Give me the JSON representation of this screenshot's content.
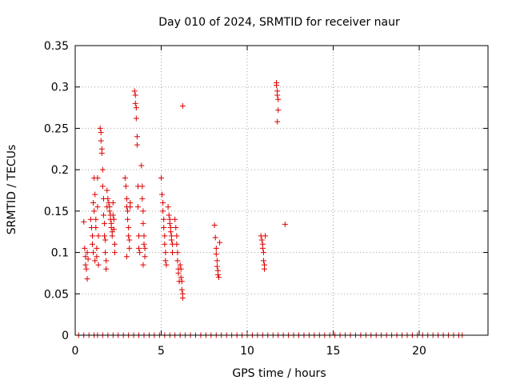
{
  "chart_data": {
    "type": "scatter",
    "title": "Day 010 of 2024, SRMTID for receiver naur",
    "xlabel": "GPS time / hours",
    "ylabel": "SRMTID / TECUs",
    "xlim": [
      0,
      24
    ],
    "ylim": [
      0,
      0.35
    ],
    "x_ticks": [
      0,
      5,
      10,
      15,
      20
    ],
    "x_tick_labels": [
      "0",
      "5",
      "10",
      "15",
      "20"
    ],
    "y_ticks": [
      0,
      0.05,
      0.1,
      0.15,
      0.2,
      0.25,
      0.3,
      0.35
    ],
    "y_tick_labels": [
      "0",
      "0.05",
      "0.1",
      "0.15",
      "0.2",
      "0.25",
      "0.3",
      "0.35"
    ],
    "grid": true,
    "marker": "+",
    "color": "#dd0000",
    "series": [
      {
        "name": "SRMTID",
        "points": [
          [
            0.5,
            0.137
          ],
          [
            0.55,
            0.105
          ],
          [
            0.6,
            0.095
          ],
          [
            0.6,
            0.085
          ],
          [
            0.65,
            0.08
          ],
          [
            0.7,
            0.068
          ],
          [
            0.7,
            0.1
          ],
          [
            0.75,
            0.092
          ],
          [
            0.9,
            0.14
          ],
          [
            0.95,
            0.13
          ],
          [
            1.0,
            0.12
          ],
          [
            1.0,
            0.11
          ],
          [
            1.05,
            0.1
          ],
          [
            1.05,
            0.16
          ],
          [
            1.1,
            0.15
          ],
          [
            1.1,
            0.19
          ],
          [
            1.15,
            0.17
          ],
          [
            1.15,
            0.09
          ],
          [
            1.2,
            0.14
          ],
          [
            1.2,
            0.13
          ],
          [
            1.25,
            0.105
          ],
          [
            1.25,
            0.095
          ],
          [
            1.3,
            0.19
          ],
          [
            1.3,
            0.155
          ],
          [
            1.35,
            0.12
          ],
          [
            1.35,
            0.085
          ],
          [
            1.45,
            0.25
          ],
          [
            1.5,
            0.245
          ],
          [
            1.5,
            0.235
          ],
          [
            1.55,
            0.225
          ],
          [
            1.55,
            0.22
          ],
          [
            1.6,
            0.2
          ],
          [
            1.6,
            0.18
          ],
          [
            1.65,
            0.165
          ],
          [
            1.65,
            0.145
          ],
          [
            1.7,
            0.135
          ],
          [
            1.7,
            0.12
          ],
          [
            1.75,
            0.115
          ],
          [
            1.75,
            0.1
          ],
          [
            1.8,
            0.09
          ],
          [
            1.8,
            0.08
          ],
          [
            1.85,
            0.175
          ],
          [
            1.85,
            0.155
          ],
          [
            1.9,
            0.165
          ],
          [
            1.95,
            0.16
          ],
          [
            2.0,
            0.155
          ],
          [
            2.0,
            0.15
          ],
          [
            2.05,
            0.145
          ],
          [
            2.05,
            0.14
          ],
          [
            2.1,
            0.135
          ],
          [
            2.1,
            0.13
          ],
          [
            2.15,
            0.125
          ],
          [
            2.15,
            0.12
          ],
          [
            2.2,
            0.16
          ],
          [
            2.2,
            0.145
          ],
          [
            2.25,
            0.14
          ],
          [
            2.25,
            0.128
          ],
          [
            2.3,
            0.1
          ],
          [
            2.3,
            0.11
          ],
          [
            2.9,
            0.19
          ],
          [
            2.95,
            0.18
          ],
          [
            3.0,
            0.165
          ],
          [
            3.0,
            0.155
          ],
          [
            3.05,
            0.15
          ],
          [
            3.05,
            0.14
          ],
          [
            3.1,
            0.13
          ],
          [
            3.1,
            0.12
          ],
          [
            3.15,
            0.115
          ],
          [
            3.15,
            0.105
          ],
          [
            3.0,
            0.095
          ],
          [
            3.2,
            0.16
          ],
          [
            3.2,
            0.155
          ],
          [
            3.45,
            0.295
          ],
          [
            3.5,
            0.29
          ],
          [
            3.5,
            0.28
          ],
          [
            3.55,
            0.275
          ],
          [
            3.55,
            0.262
          ],
          [
            3.6,
            0.24
          ],
          [
            3.6,
            0.23
          ],
          [
            3.65,
            0.18
          ],
          [
            3.65,
            0.155
          ],
          [
            3.7,
            0.12
          ],
          [
            3.7,
            0.105
          ],
          [
            3.75,
            0.1
          ],
          [
            3.85,
            0.205
          ],
          [
            3.9,
            0.18
          ],
          [
            3.9,
            0.165
          ],
          [
            3.95,
            0.15
          ],
          [
            3.95,
            0.135
          ],
          [
            4.0,
            0.12
          ],
          [
            4.0,
            0.11
          ],
          [
            4.05,
            0.105
          ],
          [
            4.05,
            0.095
          ],
          [
            3.95,
            0.085
          ],
          [
            5.0,
            0.19
          ],
          [
            5.05,
            0.17
          ],
          [
            5.1,
            0.16
          ],
          [
            5.1,
            0.15
          ],
          [
            5.15,
            0.14
          ],
          [
            5.15,
            0.13
          ],
          [
            5.2,
            0.12
          ],
          [
            5.2,
            0.11
          ],
          [
            5.25,
            0.1
          ],
          [
            5.25,
            0.09
          ],
          [
            5.3,
            0.085
          ],
          [
            5.4,
            0.155
          ],
          [
            5.45,
            0.145
          ],
          [
            5.5,
            0.14
          ],
          [
            5.5,
            0.135
          ],
          [
            5.55,
            0.13
          ],
          [
            5.55,
            0.125
          ],
          [
            5.6,
            0.12
          ],
          [
            5.6,
            0.115
          ],
          [
            5.65,
            0.11
          ],
          [
            5.65,
            0.1
          ],
          [
            5.8,
            0.14
          ],
          [
            5.85,
            0.13
          ],
          [
            5.9,
            0.12
          ],
          [
            5.9,
            0.11
          ],
          [
            5.95,
            0.1
          ],
          [
            5.95,
            0.09
          ],
          [
            6.0,
            0.08
          ],
          [
            6.0,
            0.075
          ],
          [
            6.05,
            0.065
          ],
          [
            6.1,
            0.085
          ],
          [
            6.15,
            0.08
          ],
          [
            6.15,
            0.07
          ],
          [
            6.2,
            0.065
          ],
          [
            6.2,
            0.055
          ],
          [
            6.25,
            0.05
          ],
          [
            6.25,
            0.045
          ],
          [
            6.25,
            0.277
          ],
          [
            8.1,
            0.133
          ],
          [
            8.15,
            0.118
          ],
          [
            8.2,
            0.105
          ],
          [
            8.2,
            0.098
          ],
          [
            8.25,
            0.09
          ],
          [
            8.25,
            0.083
          ],
          [
            8.3,
            0.078
          ],
          [
            8.3,
            0.073
          ],
          [
            8.35,
            0.07
          ],
          [
            8.4,
            0.112
          ],
          [
            10.8,
            0.12
          ],
          [
            10.85,
            0.115
          ],
          [
            10.9,
            0.11
          ],
          [
            10.9,
            0.105
          ],
          [
            10.95,
            0.1
          ],
          [
            10.95,
            0.09
          ],
          [
            11.0,
            0.085
          ],
          [
            11.0,
            0.08
          ],
          [
            11.05,
            0.12
          ],
          [
            11.7,
            0.305
          ],
          [
            11.7,
            0.302
          ],
          [
            11.75,
            0.295
          ],
          [
            11.75,
            0.29
          ],
          [
            11.8,
            0.285
          ],
          [
            11.8,
            0.272
          ],
          [
            11.75,
            0.258
          ],
          [
            12.2,
            0.134
          ],
          [
            0.2,
            0
          ],
          [
            0.5,
            0
          ],
          [
            0.8,
            0
          ],
          [
            1.1,
            0
          ],
          [
            1.3,
            0
          ],
          [
            1.6,
            0
          ],
          [
            1.9,
            0
          ],
          [
            2.2,
            0
          ],
          [
            2.5,
            0
          ],
          [
            2.8,
            0
          ],
          [
            3.1,
            0
          ],
          [
            3.4,
            0
          ],
          [
            3.7,
            0
          ],
          [
            4.0,
            0
          ],
          [
            4.3,
            0
          ],
          [
            4.6,
            0
          ],
          [
            4.9,
            0
          ],
          [
            5.2,
            0
          ],
          [
            5.5,
            0
          ],
          [
            5.8,
            0
          ],
          [
            6.1,
            0
          ],
          [
            6.4,
            0
          ],
          [
            6.7,
            0
          ],
          [
            7.0,
            0
          ],
          [
            7.3,
            0
          ],
          [
            7.6,
            0
          ],
          [
            7.9,
            0
          ],
          [
            8.2,
            0
          ],
          [
            8.5,
            0
          ],
          [
            8.8,
            0
          ],
          [
            9.1,
            0
          ],
          [
            9.4,
            0
          ],
          [
            9.7,
            0
          ],
          [
            10.0,
            0
          ],
          [
            10.3,
            0
          ],
          [
            10.6,
            0
          ],
          [
            10.9,
            0
          ],
          [
            11.2,
            0
          ],
          [
            11.5,
            0
          ],
          [
            11.8,
            0
          ],
          [
            12.1,
            0
          ],
          [
            12.4,
            0
          ],
          [
            12.7,
            0
          ],
          [
            13.0,
            0
          ],
          [
            13.3,
            0
          ],
          [
            13.6,
            0
          ],
          [
            13.9,
            0
          ],
          [
            14.2,
            0
          ],
          [
            14.5,
            0
          ],
          [
            14.8,
            0
          ],
          [
            15.1,
            0
          ],
          [
            15.4,
            0
          ],
          [
            15.7,
            0
          ],
          [
            16.0,
            0
          ],
          [
            16.3,
            0
          ],
          [
            16.6,
            0
          ],
          [
            16.9,
            0
          ],
          [
            17.2,
            0
          ],
          [
            17.5,
            0
          ],
          [
            17.8,
            0
          ],
          [
            18.1,
            0
          ],
          [
            18.4,
            0
          ],
          [
            18.7,
            0
          ],
          [
            19.0,
            0
          ],
          [
            19.3,
            0
          ],
          [
            19.6,
            0
          ],
          [
            19.9,
            0
          ],
          [
            20.2,
            0
          ],
          [
            20.5,
            0
          ],
          [
            20.8,
            0
          ],
          [
            21.1,
            0
          ],
          [
            21.4,
            0
          ],
          [
            21.7,
            0
          ],
          [
            22.0,
            0
          ],
          [
            22.3,
            0
          ],
          [
            22.5,
            0
          ]
        ]
      }
    ]
  }
}
